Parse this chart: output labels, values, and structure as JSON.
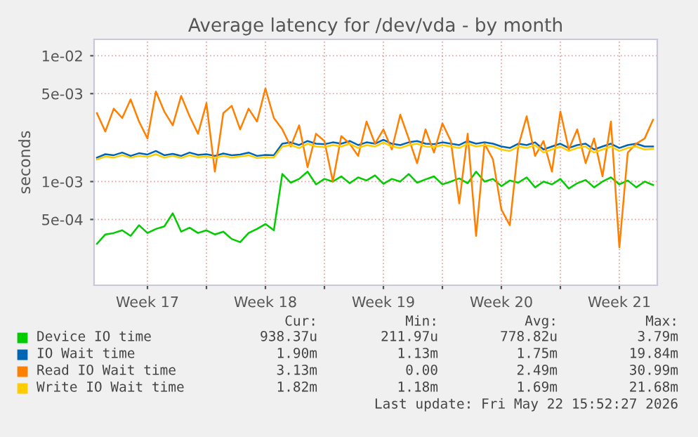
{
  "chart_data": {
    "type": "line",
    "title": "Average latency for /dev/vda - by month",
    "ylabel": "seconds",
    "log": "y",
    "x": [
      "2026-04-20T12:00",
      "2026-04-21T00:00",
      "2026-04-21T12:00",
      "2026-04-22T00:00",
      "2026-04-22T12:00",
      "2026-04-23T00:00",
      "2026-04-23T12:00",
      "2026-04-24T00:00",
      "2026-04-24T12:00",
      "2026-04-25T00:00",
      "2026-04-25T12:00",
      "2026-04-26T00:00",
      "2026-04-26T12:00",
      "2026-04-27T00:00",
      "2026-04-27T12:00",
      "2026-04-28T00:00",
      "2026-04-28T12:00",
      "2026-04-29T00:00",
      "2026-04-29T12:00",
      "2026-04-30T00:00",
      "2026-04-30T12:00",
      "2026-05-01T00:00",
      "2026-05-01T12:00",
      "2026-05-02T00:00",
      "2026-05-02T12:00",
      "2026-05-03T00:00",
      "2026-05-03T12:00",
      "2026-05-04T00:00",
      "2026-05-04T12:00",
      "2026-05-05T00:00",
      "2026-05-05T12:00",
      "2026-05-06T00:00",
      "2026-05-06T12:00",
      "2026-05-07T00:00",
      "2026-05-07T12:00",
      "2026-05-08T00:00",
      "2026-05-08T12:00",
      "2026-05-09T00:00",
      "2026-05-09T12:00",
      "2026-05-10T00:00",
      "2026-05-10T12:00",
      "2026-05-11T00:00",
      "2026-05-11T12:00",
      "2026-05-12T00:00",
      "2026-05-12T12:00",
      "2026-05-13T00:00",
      "2026-05-13T12:00",
      "2026-05-14T00:00",
      "2026-05-14T12:00",
      "2026-05-15T00:00",
      "2026-05-15T12:00",
      "2026-05-16T00:00",
      "2026-05-16T12:00",
      "2026-05-17T00:00",
      "2026-05-17T12:00",
      "2026-05-18T00:00",
      "2026-05-18T12:00",
      "2026-05-19T00:00",
      "2026-05-19T12:00",
      "2026-05-20T00:00",
      "2026-05-20T12:00",
      "2026-05-21T00:00",
      "2026-05-21T12:00",
      "2026-05-22T00:00",
      "2026-05-22T12:00",
      "2026-05-23T00:00",
      "2026-05-23T12:00"
    ],
    "series": [
      {
        "name": "Device IO time",
        "color": "#00cc00",
        "values": [
          0.00032,
          0.00038,
          0.00039,
          0.00041,
          0.00037,
          0.00045,
          0.00039,
          0.00042,
          0.00044,
          0.00056,
          0.0004,
          0.00043,
          0.00039,
          0.00041,
          0.00038,
          0.0004,
          0.00035,
          0.00033,
          0.00039,
          0.00042,
          0.00046,
          0.00041,
          0.00115,
          0.00098,
          0.00105,
          0.0012,
          0.00095,
          0.00105,
          0.001,
          0.0011,
          0.00097,
          0.00108,
          0.00102,
          0.00112,
          0.00096,
          0.00105,
          0.001,
          0.00115,
          0.00098,
          0.00104,
          0.0011,
          0.00095,
          0.001,
          0.00106,
          0.00097,
          0.0012,
          0.001,
          0.00105,
          0.00092,
          0.00102,
          0.00098,
          0.00108,
          0.0009,
          0.001,
          0.00095,
          0.00105,
          0.00088,
          0.00097,
          0.00103,
          0.0009,
          0.001,
          0.00108,
          0.00095,
          0.00102,
          0.0009,
          0.001,
          0.00094
        ]
      },
      {
        "name": "IO Wait time",
        "color": "#0066b3",
        "values": [
          0.00155,
          0.00165,
          0.00162,
          0.0017,
          0.0016,
          0.00168,
          0.00164,
          0.00175,
          0.00162,
          0.00166,
          0.0016,
          0.0017,
          0.00163,
          0.00165,
          0.0016,
          0.00167,
          0.00162,
          0.00164,
          0.0017,
          0.0016,
          0.00163,
          0.00162,
          0.002,
          0.00205,
          0.00195,
          0.0021,
          0.002,
          0.00198,
          0.00205,
          0.002,
          0.0021,
          0.00195,
          0.00205,
          0.002,
          0.00215,
          0.002,
          0.00195,
          0.00205,
          0.0021,
          0.002,
          0.00198,
          0.00205,
          0.002,
          0.00195,
          0.0021,
          0.002,
          0.00205,
          0.002,
          0.0019,
          0.00185,
          0.002,
          0.00195,
          0.00205,
          0.0018,
          0.0019,
          0.002,
          0.00185,
          0.00195,
          0.002,
          0.0018,
          0.0019,
          0.002,
          0.00185,
          0.00195,
          0.002,
          0.0019,
          0.0019
        ]
      },
      {
        "name": "Read IO Wait time",
        "color": "#ff8000",
        "values": [
          0.0035,
          0.0025,
          0.0038,
          0.0032,
          0.0045,
          0.003,
          0.0022,
          0.0052,
          0.0036,
          0.0028,
          0.0048,
          0.0033,
          0.0024,
          0.0042,
          0.0012,
          0.0035,
          0.004,
          0.0026,
          0.0038,
          0.003,
          0.0055,
          0.0032,
          0.0026,
          0.0019,
          0.0028,
          0.0013,
          0.0024,
          0.0021,
          0.001,
          0.0023,
          0.002,
          0.0016,
          0.003,
          0.002,
          0.0026,
          0.0018,
          0.0034,
          0.0022,
          0.0014,
          0.0026,
          0.0017,
          0.0029,
          0.0021,
          0.00067,
          0.0024,
          0.00037,
          0.002,
          0.0015,
          0.0006,
          0.00045,
          0.0019,
          0.0033,
          0.0016,
          0.0021,
          0.0012,
          0.0036,
          0.0018,
          0.0026,
          0.0014,
          0.0022,
          0.0011,
          0.003,
          0.0003,
          0.0017,
          0.002,
          0.0022,
          0.0031
        ]
      },
      {
        "name": "Write IO Wait time",
        "color": "#ffcc00",
        "values": [
          0.0015,
          0.00158,
          0.00155,
          0.00162,
          0.00155,
          0.0016,
          0.00157,
          0.00165,
          0.00155,
          0.0016,
          0.00154,
          0.00162,
          0.00156,
          0.00158,
          0.00154,
          0.0016,
          0.00155,
          0.00158,
          0.00162,
          0.00154,
          0.00156,
          0.00155,
          0.0019,
          0.00195,
          0.00185,
          0.002,
          0.0019,
          0.00188,
          0.00195,
          0.0019,
          0.002,
          0.00185,
          0.00195,
          0.0019,
          0.00205,
          0.0019,
          0.00185,
          0.00195,
          0.002,
          0.0019,
          0.00188,
          0.00195,
          0.0019,
          0.00185,
          0.002,
          0.0019,
          0.00195,
          0.0019,
          0.0018,
          0.00175,
          0.0019,
          0.00185,
          0.00195,
          0.0017,
          0.0018,
          0.0019,
          0.00175,
          0.00185,
          0.0019,
          0.0017,
          0.0018,
          0.0019,
          0.00175,
          0.00185,
          0.0019,
          0.0018,
          0.00182
        ]
      }
    ],
    "xlim": [
      "2026-04-20T08:00",
      "2026-05-23T18:00"
    ],
    "xticks": [
      {
        "value": "2026-04-23T12:00",
        "label": "Week 17"
      },
      {
        "value": "2026-04-27T00:00",
        "label": null
      },
      {
        "value": "2026-04-30T12:00",
        "label": "Week 18"
      },
      {
        "value": "2026-05-04T00:00",
        "label": null
      },
      {
        "value": "2026-05-07T12:00",
        "label": "Week 19"
      },
      {
        "value": "2026-05-11T00:00",
        "label": null
      },
      {
        "value": "2026-05-14T12:00",
        "label": "Week 20"
      },
      {
        "value": "2026-05-18T00:00",
        "label": null
      },
      {
        "value": "2026-05-21T12:00",
        "label": "Week 21"
      }
    ],
    "ylim": [
      0.00015,
      0.0135
    ],
    "yticks": [
      {
        "value": 0.0005,
        "label": "5e-04"
      },
      {
        "value": 0.001,
        "label": "1e-03"
      },
      {
        "value": 0.005,
        "label": "5e-03"
      },
      {
        "value": 0.01,
        "label": "1e-02"
      }
    ],
    "grid": true,
    "legend": "bottom",
    "annotations": [
      "Cur:",
      "Min:",
      "Avg:",
      "Max:",
      "938.37u",
      "211.97u",
      "778.82u",
      "3.79m",
      "1.90m",
      "1.13m",
      "1.75m",
      "19.84m",
      "3.13m",
      "0.00",
      "2.49m",
      "30.99m",
      "1.82m",
      "1.18m",
      "1.69m",
      "21.68m",
      "Last update: Fri May 22 15:52:27 2026"
    ]
  }
}
